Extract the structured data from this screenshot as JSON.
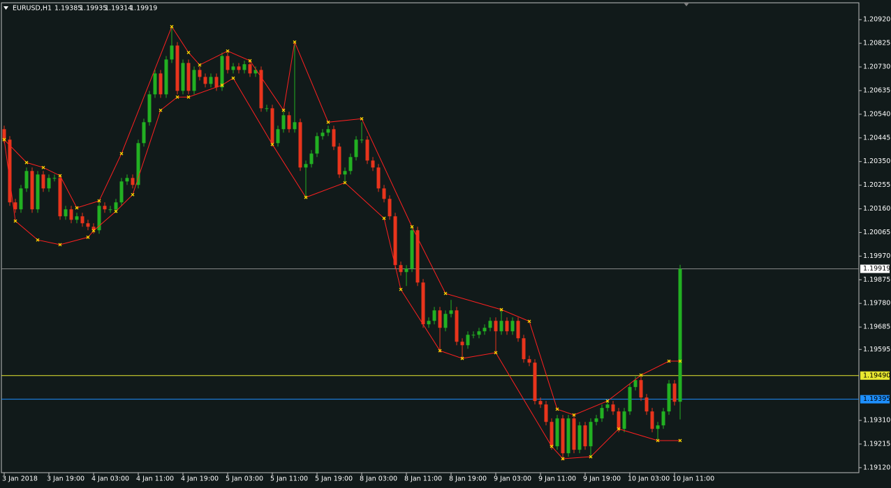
{
  "chart_data": {
    "type": "candlestick",
    "title": "EURUSD,H1",
    "ohlc_labels": [
      "1.19385",
      "1.19935",
      "1.19314",
      "1.19919"
    ],
    "categories": [
      "3 Jan 2018",
      null,
      null,
      null,
      null,
      null,
      null,
      null,
      "3 Jan 19:00",
      null,
      null,
      null,
      null,
      null,
      null,
      null,
      "4 Jan 03:00",
      null,
      null,
      null,
      null,
      null,
      null,
      null,
      "4 Jan 11:00",
      null,
      null,
      null,
      null,
      null,
      null,
      null,
      "4 Jan 19:00",
      null,
      null,
      null,
      null,
      null,
      null,
      null,
      "5 Jan 03:00",
      null,
      null,
      null,
      null,
      null,
      null,
      null,
      "5 Jan 11:00",
      null,
      null,
      null,
      null,
      null,
      null,
      null,
      "5 Jan 19:00",
      null,
      null,
      null,
      null,
      null,
      null,
      null,
      "8 Jan 03:00",
      null,
      null,
      null,
      null,
      null,
      null,
      null,
      "8 Jan 11:00",
      null,
      null,
      null,
      null,
      null,
      null,
      null,
      "8 Jan 19:00",
      null,
      null,
      null,
      null,
      null,
      null,
      null,
      "9 Jan 03:00",
      null,
      null,
      null,
      null,
      null,
      null,
      null,
      "9 Jan 11:00",
      null,
      null,
      null,
      null,
      null,
      null,
      null,
      "9 Jan 19:00",
      null,
      null,
      null,
      null,
      null,
      null,
      null,
      "10 Jan 03:00",
      null,
      null,
      null,
      null,
      null,
      null,
      null,
      "10 Jan 11:00",
      null
    ],
    "open": [
      1.2048,
      1.20438,
      1.20186,
      1.20158,
      1.20242,
      1.20312,
      1.20158,
      1.20298,
      1.20242,
      1.20284,
      1.20284,
      1.2013,
      1.20158,
      1.20116,
      1.2013,
      1.20102,
      1.20088,
      1.20074,
      1.20172,
      1.20158,
      1.20158,
      1.20186,
      1.2027,
      1.20284,
      1.20256,
      1.20424,
      1.20508,
      1.2062,
      1.20704,
      1.2062,
      1.2076,
      1.20816,
      1.20634,
      1.20746,
      1.20634,
      1.20718,
      1.2069,
      1.20662,
      1.2069,
      1.20648,
      1.20774,
      1.20718,
      1.20732,
      1.20718,
      1.20741,
      1.20704,
      1.20718,
      1.20564,
      1.20564,
      1.20424,
      1.2048,
      1.20536,
      1.2048,
      1.20508,
      1.20326,
      1.2034,
      1.20382,
      1.20452,
      1.20466,
      1.2048,
      1.2041,
      1.20298,
      1.20312,
      1.20368,
      1.20438,
      1.20438,
      1.20354,
      1.20326,
      1.20242,
      1.202,
      1.2013,
      1.19934,
      1.19906,
      1.1992,
      1.20074,
      1.19864,
      1.19696,
      1.1971,
      1.19752,
      1.19682,
      1.19738,
      1.19752,
      1.19626,
      1.19612,
      1.19654,
      1.19654,
      1.19668,
      1.19682,
      1.1971,
      1.19668,
      1.1971,
      1.19668,
      1.1971,
      1.1964,
      1.19556,
      1.19542,
      1.19388,
      1.19374,
      1.19304,
      1.19206,
      1.19318,
      1.19178,
      1.19318,
      1.19192,
      1.1929,
      1.19206,
      1.19304,
      1.19318,
      1.1936,
      1.19374,
      1.19346,
      1.19276,
      1.19346,
      1.19444,
      1.19472,
      1.19402,
      1.19346,
      1.19276,
      1.1929,
      1.19346,
      1.19458,
      1.19385
    ],
    "high": [
      1.20494,
      1.20452,
      1.202,
      1.20256,
      1.20326,
      1.20326,
      1.20312,
      1.20312,
      1.20298,
      1.20298,
      1.20298,
      1.20172,
      1.20172,
      1.20144,
      1.20144,
      1.20116,
      1.20102,
      1.20186,
      1.20186,
      1.20172,
      1.202,
      1.20284,
      1.20298,
      1.20298,
      1.20438,
      1.20522,
      1.20634,
      1.20718,
      1.20718,
      1.20774,
      1.20892,
      1.2083,
      1.2076,
      1.2076,
      1.20732,
      1.20732,
      1.20704,
      1.20704,
      1.20704,
      1.20788,
      1.20788,
      1.20746,
      1.20746,
      1.20755,
      1.20755,
      1.20732,
      1.20732,
      1.20578,
      1.20578,
      1.20494,
      1.2055,
      1.2055,
      1.2083,
      1.20522,
      1.20354,
      1.20396,
      1.20466,
      1.2048,
      1.20494,
      1.20494,
      1.20424,
      1.20326,
      1.20382,
      1.20452,
      1.20508,
      1.20452,
      1.20368,
      1.2034,
      1.20256,
      1.20214,
      1.20144,
      1.19948,
      1.19934,
      1.20088,
      1.20088,
      1.19878,
      1.19724,
      1.19766,
      1.19766,
      1.19752,
      1.19794,
      1.19766,
      1.1964,
      1.19668,
      1.19668,
      1.19682,
      1.19696,
      1.19724,
      1.19724,
      1.19752,
      1.19724,
      1.19724,
      1.19724,
      1.19654,
      1.1957,
      1.19556,
      1.19402,
      1.19388,
      1.19318,
      1.19332,
      1.19332,
      1.19332,
      1.19332,
      1.19304,
      1.19304,
      1.19318,
      1.19332,
      1.19374,
      1.19388,
      1.19388,
      1.1936,
      1.1936,
      1.19458,
      1.19486,
      1.19486,
      1.19416,
      1.1936,
      1.19304,
      1.1936,
      1.19472,
      1.19472,
      1.19935
    ],
    "low": [
      1.20424,
      1.20172,
      1.20144,
      1.20144,
      1.20228,
      1.20144,
      1.20144,
      1.20228,
      1.20228,
      1.2027,
      1.20116,
      1.20116,
      1.20102,
      1.20102,
      1.20088,
      1.20074,
      1.2006,
      1.2006,
      1.20144,
      1.20144,
      1.20144,
      1.20172,
      1.20256,
      1.20242,
      1.20242,
      1.2041,
      1.20494,
      1.20606,
      1.20606,
      1.20606,
      1.20746,
      1.2062,
      1.2062,
      1.2062,
      1.2062,
      1.20676,
      1.20648,
      1.20648,
      1.20634,
      1.20634,
      1.20704,
      1.20704,
      1.20704,
      1.20704,
      1.2069,
      1.2069,
      1.2055,
      1.2055,
      1.2041,
      1.2041,
      1.20466,
      1.20466,
      1.20466,
      1.20312,
      1.20206,
      1.20326,
      1.20368,
      1.20438,
      1.20452,
      1.20396,
      1.20284,
      1.2027,
      1.20298,
      1.20354,
      1.20424,
      1.2034,
      1.20312,
      1.20228,
      1.20186,
      1.20116,
      1.1992,
      1.19892,
      1.1985,
      1.19906,
      1.1985,
      1.19682,
      1.19682,
      1.19696,
      1.19584,
      1.19668,
      1.19724,
      1.19612,
      1.19556,
      1.19598,
      1.1964,
      1.1964,
      1.19654,
      1.19668,
      1.19584,
      1.19654,
      1.19654,
      1.19654,
      1.19626,
      1.19542,
      1.19528,
      1.19374,
      1.1936,
      1.1929,
      1.19192,
      1.19192,
      1.1915,
      1.19164,
      1.19178,
      1.19178,
      1.19192,
      1.1916,
      1.1929,
      1.19304,
      1.19346,
      1.19332,
      1.19262,
      1.19262,
      1.19332,
      1.1943,
      1.19388,
      1.19332,
      1.19262,
      1.19234,
      1.19276,
      1.19332,
      1.1937,
      1.19314
    ],
    "close": [
      1.20438,
      1.20186,
      1.20158,
      1.20242,
      1.20312,
      1.20158,
      1.20298,
      1.20242,
      1.20284,
      1.20284,
      1.2013,
      1.20158,
      1.20116,
      1.2013,
      1.20102,
      1.20088,
      1.20074,
      1.20172,
      1.20158,
      1.20158,
      1.20186,
      1.2027,
      1.20284,
      1.20256,
      1.20424,
      1.20508,
      1.2062,
      1.20704,
      1.2062,
      1.2076,
      1.20816,
      1.20634,
      1.20746,
      1.20634,
      1.20718,
      1.2069,
      1.20662,
      1.2069,
      1.20648,
      1.20774,
      1.20718,
      1.20732,
      1.20718,
      1.20741,
      1.20704,
      1.20718,
      1.20564,
      1.20564,
      1.20424,
      1.2048,
      1.20536,
      1.2048,
      1.20508,
      1.20326,
      1.2034,
      1.20382,
      1.20452,
      1.20466,
      1.2048,
      1.2041,
      1.20298,
      1.20312,
      1.20368,
      1.20438,
      1.20438,
      1.20354,
      1.20326,
      1.20242,
      1.202,
      1.2013,
      1.19934,
      1.19906,
      1.1992,
      1.20074,
      1.19864,
      1.19696,
      1.1971,
      1.19752,
      1.19682,
      1.19738,
      1.19752,
      1.19626,
      1.19612,
      1.19654,
      1.19654,
      1.19668,
      1.19682,
      1.1971,
      1.19668,
      1.1971,
      1.19668,
      1.1971,
      1.1964,
      1.19556,
      1.19542,
      1.19388,
      1.19374,
      1.19304,
      1.19206,
      1.19318,
      1.19178,
      1.19318,
      1.19192,
      1.1929,
      1.19206,
      1.19304,
      1.19318,
      1.1936,
      1.19374,
      1.19346,
      1.19276,
      1.19346,
      1.19444,
      1.19472,
      1.19402,
      1.19346,
      1.19276,
      1.1929,
      1.19346,
      1.19458,
      1.19385,
      1.19919
    ],
    "up_color": "#22b022",
    "down_color": "#e8341c",
    "lines": [
      {
        "color": "#ff2020",
        "marker_color": "#ffd700",
        "x": [
          0,
          4,
          7,
          10,
          13,
          17,
          21,
          30,
          33,
          35,
          40,
          44,
          50,
          52,
          58,
          64,
          73,
          79,
          89,
          94,
          99,
          102,
          108,
          114,
          119,
          121
        ],
        "values": [
          1.20438,
          1.20346,
          1.20326,
          1.20293,
          1.20164,
          1.20192,
          1.20382,
          1.20892,
          1.20788,
          1.20738,
          1.20794,
          1.20755,
          1.20556,
          1.2083,
          1.20508,
          1.20522,
          1.20088,
          1.1982,
          1.19755,
          1.19708,
          1.19355,
          1.19332,
          1.19388,
          1.19492,
          1.19548,
          1.19548
        ]
      },
      {
        "color": "#ff2020",
        "marker_color": "#ffd700",
        "x": [
          0,
          2,
          6,
          10,
          15,
          16,
          20,
          23,
          28,
          31,
          33,
          39,
          41,
          48,
          54,
          61,
          68,
          71,
          78,
          82,
          88,
          98,
          100,
          105,
          110,
          117,
          121
        ],
        "values": [
          1.20438,
          1.20111,
          1.20035,
          1.20016,
          1.20046,
          1.20072,
          1.2015,
          1.20217,
          1.20556,
          1.20609,
          1.20609,
          1.20657,
          1.20685,
          1.20419,
          1.20206,
          1.20265,
          1.20122,
          1.19836,
          1.1959,
          1.19559,
          1.19582,
          1.19206,
          1.19156,
          1.19164,
          1.19276,
          1.19229,
          1.19229
        ]
      }
    ],
    "price_lines": [
      {
        "value": 1.19919,
        "label": "1.19919",
        "color": "#8a8a8a",
        "text_color": "#000000",
        "label_bg": "#ffffff"
      },
      {
        "value": 1.1949,
        "label": "1.19490",
        "color": "#e8e830",
        "text_color": "#000000",
        "label_bg": "#e8e830"
      },
      {
        "value": 1.19395,
        "label": "1.19395",
        "color": "#1e90ff",
        "text_color": "#000000",
        "label_bg": "#1e90ff"
      }
    ],
    "ylim": [
      1.191,
      1.20985
    ],
    "yticks": [
      {
        "value": 1.2092,
        "label": "1.20920"
      },
      {
        "value": 1.20825,
        "label": "1.20825"
      },
      {
        "value": 1.2073,
        "label": "1.20730"
      },
      {
        "value": 1.20635,
        "label": "1.20635"
      },
      {
        "value": 1.2054,
        "label": "1.20540"
      },
      {
        "value": 1.20445,
        "label": "1.20445"
      },
      {
        "value": 1.2035,
        "label": "1.20350"
      },
      {
        "value": 1.20255,
        "label": "1.20255"
      },
      {
        "value": 1.2016,
        "label": "1.20160"
      },
      {
        "value": 1.20065,
        "label": "1.20065"
      },
      {
        "value": 1.1997,
        "label": "1.19970"
      },
      {
        "value": 1.19875,
        "label": "1.19875"
      },
      {
        "value": 1.1978,
        "label": "1.19780"
      },
      {
        "value": 1.19685,
        "label": "1.19685"
      },
      {
        "value": 1.19595,
        "label": "1.19595"
      },
      {
        "value": 1.1931,
        "label": "1.19310"
      },
      {
        "value": 1.19215,
        "label": "1.19215"
      },
      {
        "value": 1.1912,
        "label": "1.19120"
      }
    ],
    "grid": false
  }
}
